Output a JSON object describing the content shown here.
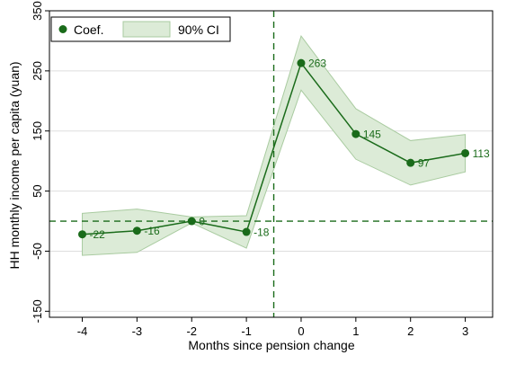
{
  "chart_data": {
    "type": "line",
    "xlabel": "Months since pension change",
    "ylabel": "HH monthly income per capita (yuan)",
    "x": [
      -4,
      -3,
      -2,
      -1,
      0,
      1,
      2,
      3
    ],
    "xlim": [
      -4.6,
      3.5
    ],
    "ylim": [
      -160,
      350
    ],
    "yticks": [
      -150,
      -50,
      50,
      150,
      250,
      350
    ],
    "series": [
      {
        "name": "Coef.",
        "values": [
          -22,
          -16,
          0,
          -18,
          263,
          145,
          97,
          113
        ],
        "point_labels": [
          "-22",
          "-16",
          "0",
          "-18",
          "263",
          "145",
          "97",
          "113"
        ],
        "ci_lower": [
          -57,
          -52,
          -3,
          -45,
          218,
          103,
          60,
          82
        ],
        "ci_upper": [
          13,
          20,
          7,
          9,
          308,
          187,
          134,
          144
        ]
      }
    ],
    "band_name": "90% CI",
    "reference_lines": {
      "vertical_x": -0.5,
      "horizontal_y": 0,
      "style": "dashed"
    },
    "legend_position": "top-left",
    "grid": "horizontal",
    "colors": {
      "line": "#1a6b1a",
      "band_fill": "#dcebd7",
      "band_edge": "#a9cba0",
      "ref_line": "#1a6b1a",
      "grid": "#dedede"
    }
  }
}
